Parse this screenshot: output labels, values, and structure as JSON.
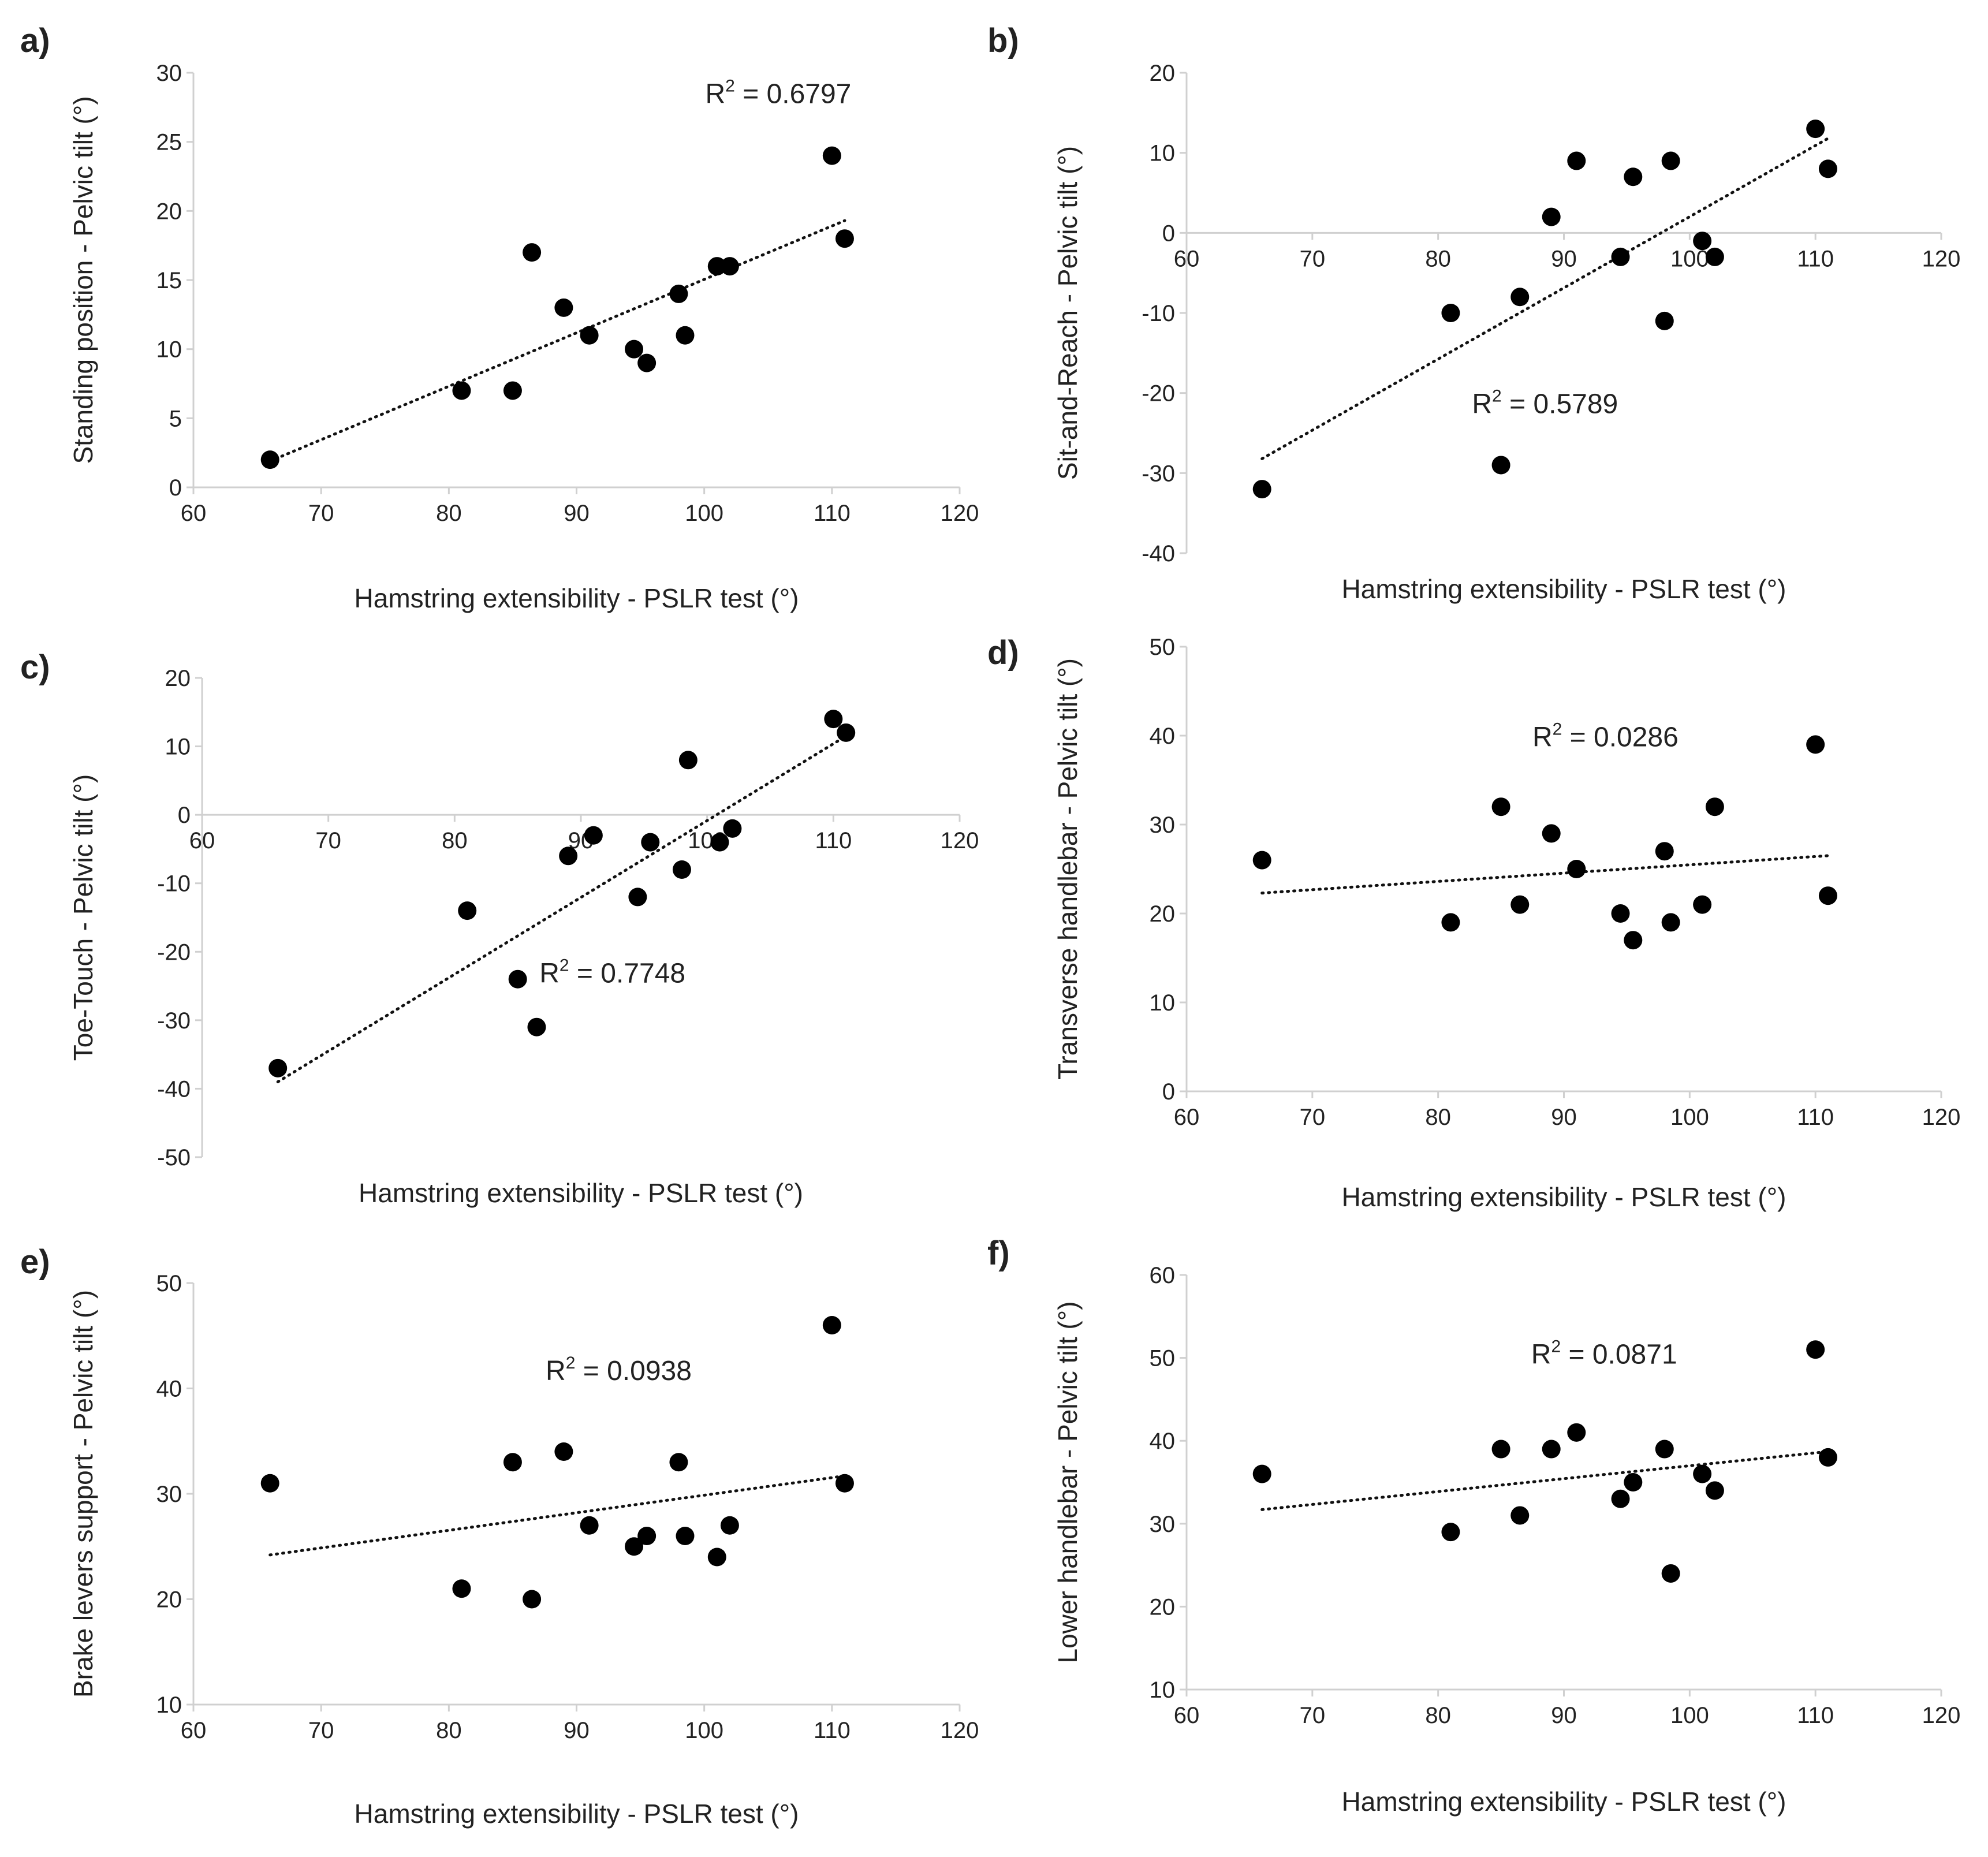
{
  "chart_data": [
    {
      "type": "scatter",
      "panel": "a)",
      "xlabel": "Hamstring extensibility - PSLR test (°)",
      "ylabel": "Standing position - Pelvic tilt (°)",
      "xlim": [
        60,
        120
      ],
      "ylim": [
        0,
        30
      ],
      "xticks": [
        60,
        70,
        80,
        90,
        100,
        110,
        120
      ],
      "yticks": [
        0,
        5,
        10,
        15,
        20,
        25,
        30
      ],
      "x_axis_at": 0,
      "r2_text": "R",
      "r2_sup": "2",
      "r2_value": " = 0.6797",
      "r2_pos": [
        105.8,
        27.8
      ],
      "trendline": {
        "x": [
          66,
          111
        ],
        "y": [
          1.9,
          19.3
        ]
      },
      "x": [
        66,
        81,
        85,
        86.5,
        89,
        91,
        94.5,
        95.5,
        98,
        98.5,
        101,
        102,
        110,
        111
      ],
      "y": [
        2,
        7,
        7,
        17,
        13,
        11,
        10,
        9,
        14,
        11,
        16,
        16,
        24,
        18
      ]
    },
    {
      "type": "scatter",
      "panel": "b)",
      "xlabel": "Hamstring extensibility - PSLR test (°)",
      "ylabel": "Sit-and-Reach - Pelvic tilt (°)",
      "xlim": [
        60,
        120
      ],
      "ylim": [
        -40,
        20
      ],
      "xticks": [
        60,
        70,
        80,
        90,
        100,
        110,
        120
      ],
      "yticks": [
        -40,
        -30,
        -20,
        -10,
        0,
        10,
        20
      ],
      "x_axis_at": 0,
      "r2_text": "R",
      "r2_sup": "2",
      "r2_value": " = 0.5789",
      "r2_pos": [
        88.5,
        -22.5
      ],
      "trendline": {
        "x": [
          66,
          111
        ],
        "y": [
          -28.2,
          11.8
        ]
      },
      "x": [
        66,
        81,
        85,
        86.5,
        89,
        91,
        94.5,
        95.5,
        98,
        98.5,
        101,
        102,
        110,
        111
      ],
      "y": [
        -32,
        -10,
        -29,
        -8,
        2,
        9,
        -3,
        7,
        -11,
        9,
        -1,
        -3,
        13,
        8
      ]
    },
    {
      "type": "scatter",
      "panel": "c)",
      "xlabel": "Hamstring extensibility - PSLR test (°)",
      "ylabel": "Toe-Touch - Pelvic tilt (°)",
      "xlim": [
        60,
        120
      ],
      "ylim": [
        -50,
        20
      ],
      "xticks": [
        60,
        70,
        80,
        90,
        100,
        110,
        120
      ],
      "yticks": [
        -50,
        -40,
        -30,
        -20,
        -10,
        0,
        10,
        20
      ],
      "x_axis_at": 0,
      "r2_text": "R",
      "r2_sup": "2",
      "r2_value": " = 0.7748",
      "r2_pos": [
        92.5,
        -24.5
      ],
      "trendline": {
        "x": [
          66,
          111
        ],
        "y": [
          -39,
          11.5
        ]
      },
      "x": [
        66,
        81,
        85,
        86.5,
        89,
        91,
        94.5,
        95.5,
        98,
        98.5,
        101,
        102,
        110,
        111
      ],
      "y": [
        -37,
        -14,
        -24,
        -31,
        -6,
        -3,
        -12,
        -4,
        -8,
        8,
        -4,
        -2,
        14,
        12
      ]
    },
    {
      "type": "scatter",
      "panel": "d)",
      "xlabel": "Hamstring extensibility - PSLR test (°)",
      "ylabel": "Transverse handlebar - Pelvic tilt (°)",
      "xlim": [
        60,
        120
      ],
      "ylim": [
        0,
        50
      ],
      "xticks": [
        60,
        70,
        80,
        90,
        100,
        110,
        120
      ],
      "yticks": [
        0,
        10,
        20,
        30,
        40,
        50
      ],
      "x_axis_at": 0,
      "r2_text": "R",
      "r2_sup": "2",
      "r2_value": " = 0.0286",
      "r2_pos": [
        93.3,
        38.8
      ],
      "trendline": {
        "x": [
          66,
          111
        ],
        "y": [
          22.3,
          26.5
        ]
      },
      "x": [
        66,
        81,
        85,
        86.5,
        89,
        91,
        94.5,
        95.5,
        98,
        98.5,
        101,
        102,
        110,
        111
      ],
      "y": [
        26,
        19,
        32,
        21,
        29,
        25,
        20,
        17,
        27,
        19,
        21,
        32,
        39,
        22
      ]
    },
    {
      "type": "scatter",
      "panel": "e)",
      "xlabel": "Hamstring extensibility - PSLR test (°)",
      "ylabel": "Brake levers support - Pelvic tilt (°)",
      "xlim": [
        60,
        120
      ],
      "ylim": [
        10,
        50
      ],
      "xticks": [
        60,
        70,
        80,
        90,
        100,
        110,
        120
      ],
      "yticks": [
        10,
        20,
        30,
        40,
        50
      ],
      "x_axis_at": 10,
      "r2_text": "R",
      "r2_sup": "2",
      "r2_value": " = 0.0938",
      "r2_pos": [
        93.3,
        40.8
      ],
      "trendline": {
        "x": [
          66,
          111
        ],
        "y": [
          24.2,
          31.7
        ]
      },
      "x": [
        66,
        81,
        85,
        86.5,
        89,
        91,
        94.5,
        95.5,
        98,
        98.5,
        101,
        102,
        110,
        111
      ],
      "y": [
        31,
        21,
        33,
        20,
        34,
        27,
        25,
        26,
        33,
        26,
        24,
        27,
        46,
        31
      ]
    },
    {
      "type": "scatter",
      "panel": "f)",
      "xlabel": "Hamstring extensibility - PSLR test (°)",
      "ylabel": "Lower handlebar - Pelvic tilt (°)",
      "xlim": [
        60,
        120
      ],
      "ylim": [
        10,
        60
      ],
      "xticks": [
        60,
        70,
        80,
        90,
        100,
        110,
        120
      ],
      "yticks": [
        10,
        20,
        30,
        40,
        50,
        60
      ],
      "x_axis_at": 10,
      "r2_text": "R",
      "r2_sup": "2",
      "r2_value": " = 0.0871",
      "r2_pos": [
        93.2,
        49.3
      ],
      "trendline": {
        "x": [
          66,
          111
        ],
        "y": [
          31.7,
          38.7
        ]
      },
      "x": [
        66,
        81,
        85,
        86.5,
        89,
        91,
        94.5,
        95.5,
        98,
        98.5,
        101,
        102,
        110,
        111
      ],
      "y": [
        36,
        29,
        39,
        31,
        39,
        41,
        33,
        35,
        39,
        24,
        36,
        34,
        51,
        38
      ]
    }
  ]
}
